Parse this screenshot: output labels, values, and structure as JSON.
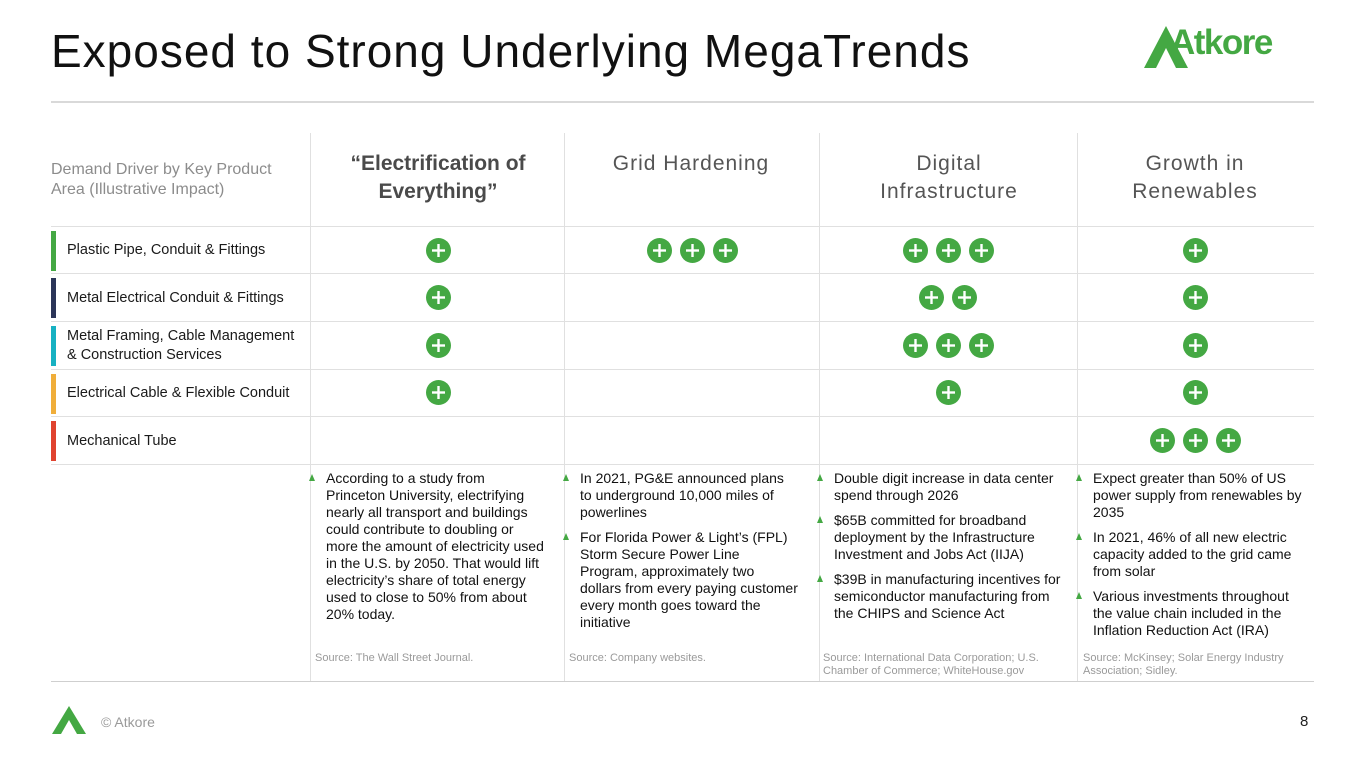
{
  "header": {
    "title": "Exposed to Strong Underlying MegaTrends",
    "logo_text": "Atkore",
    "brand_color": "#44a843"
  },
  "table": {
    "row_header": "Demand Driver by Key Product Area (Illustrative Impact)",
    "columns": [
      {
        "label": "“Electrification of Everything”"
      },
      {
        "label": "Grid Hardening"
      },
      {
        "label": "Digital Infrastructure"
      },
      {
        "label": "Growth in Renewables"
      }
    ],
    "rows": [
      {
        "label": "Plastic Pipe, Conduit & Fittings",
        "color": "#44a843",
        "impact": [
          1,
          3,
          3,
          1
        ]
      },
      {
        "label": "Metal Electrical Conduit & Fittings",
        "color": "#2b3558",
        "impact": [
          1,
          0,
          2,
          1
        ]
      },
      {
        "label": "Metal Framing, Cable Management & Construction Services",
        "color": "#17b1c2",
        "impact": [
          1,
          0,
          3,
          1
        ]
      },
      {
        "label": "Electrical Cable & Flexible Conduit",
        "color": "#f0ae3a",
        "impact": [
          1,
          0,
          1,
          1
        ]
      },
      {
        "label": "Mechanical Tube",
        "color": "#e0432f",
        "impact": [
          0,
          0,
          0,
          3
        ]
      }
    ]
  },
  "details": [
    {
      "bullets": [
        "According to a study from Princeton University, electrifying nearly all transport and buildings could contribute to doubling or more the amount of electricity used in the U.S. by 2050. That would lift electricity’s share of total energy used to close to 50% from about 20% today."
      ],
      "source": "Source: The Wall Street Journal."
    },
    {
      "bullets": [
        "In 2021, PG&E announced plans to underground 10,000 miles of powerlines",
        "For Florida Power & Light’s (FPL) Storm Secure Power Line Program, approximately two dollars from every paying customer every month goes toward the initiative"
      ],
      "source": "Source: Company websites."
    },
    {
      "bullets": [
        "Double digit increase in data center spend through 2026",
        "$65B committed for broadband deployment by the Infrastructure Investment and Jobs Act (IIJA)",
        "$39B in manufacturing incentives for semiconductor manufacturing from the CHIPS and Science Act"
      ],
      "source": "Source: International Data Corporation; U.S. Chamber of Commerce; WhiteHouse.gov"
    },
    {
      "bullets": [
        "Expect greater than 50% of US power supply from renewables by 2035",
        "In 2021, 46% of all new electric capacity added to the grid came from solar",
        "Various investments throughout the value chain included in the Inflation Reduction Act (IRA)"
      ],
      "source": "Source: McKinsey; Solar Energy Industry Association; Sidley."
    }
  ],
  "footer": {
    "copyright": "© Atkore",
    "page_number": "8"
  }
}
